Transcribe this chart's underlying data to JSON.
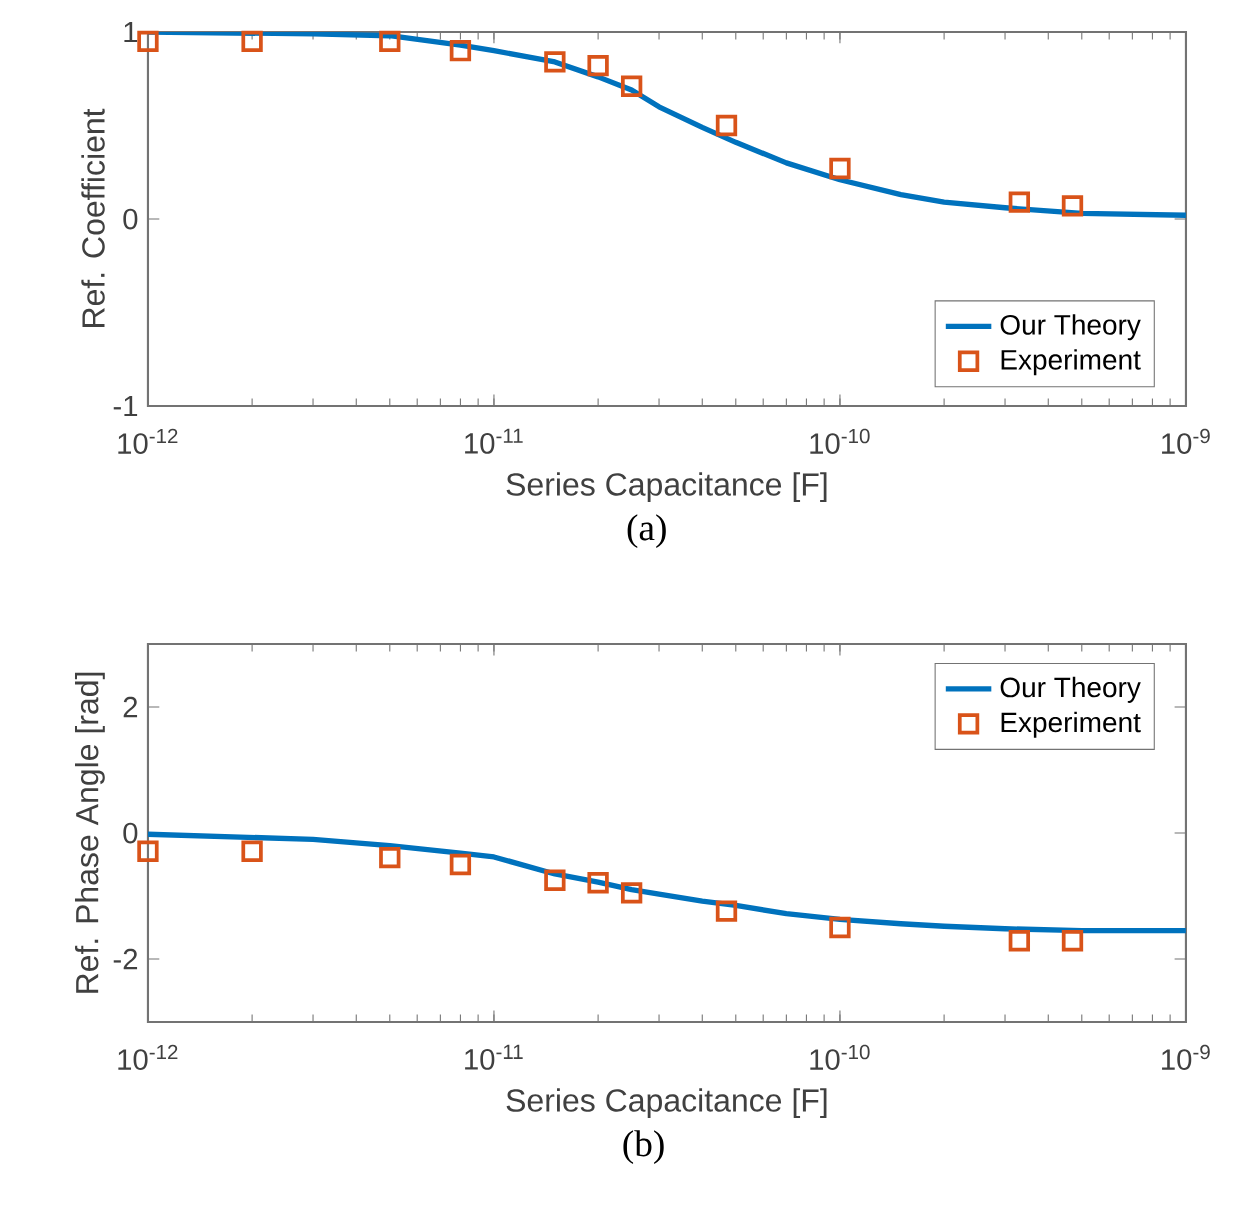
{
  "chart_data": [
    {
      "type": "line",
      "xlabel": "Series Capacitance [F]",
      "ylabel": "Ref. Coefficient",
      "annotations": [
        "(a)"
      ],
      "log": "x",
      "grid": false,
      "legend": "bottom right",
      "xlim": [
        1e-12,
        1e-09
      ],
      "xticks": [
        {
          "value": 1e-12,
          "label": "10$^{-12}$"
        },
        {
          "value": 1e-11,
          "label": "10$^{-11}$"
        },
        {
          "value": 1e-10,
          "label": "10$^{-10}$"
        },
        {
          "value": 1e-09,
          "label": "10$^{-9}$"
        }
      ],
      "ylim": [
        -1,
        1
      ],
      "yticks": [
        -1,
        0,
        1
      ],
      "series": [
        {
          "name": "Our Theory",
          "color": "#0072bd",
          "marker": "none",
          "line_style": "solid",
          "x": [
            1e-12,
            3e-12,
            5e-12,
            8e-12,
            1e-11,
            1.5e-11,
            2e-11,
            2.5e-11,
            3e-11,
            4e-11,
            5e-11,
            7e-11,
            1e-10,
            1.5e-10,
            2e-10,
            3e-10,
            5e-10,
            1e-09
          ],
          "values": [
            1.0,
            0.99,
            0.98,
            0.93,
            0.9,
            0.84,
            0.76,
            0.69,
            0.6,
            0.49,
            0.41,
            0.3,
            0.21,
            0.13,
            0.09,
            0.06,
            0.03,
            0.02
          ]
        },
        {
          "name": "Experiment",
          "type": "scatter",
          "color": "#d95319",
          "marker": "square",
          "x": [
            1e-12,
            2e-12,
            5e-12,
            8e-12,
            1.5e-11,
            2e-11,
            2.5e-11,
            4.7e-11,
            1e-10,
            3.3e-10,
            4.7e-10
          ],
          "values": [
            0.95,
            0.95,
            0.95,
            0.9,
            0.84,
            0.82,
            0.71,
            0.5,
            0.27,
            0.09,
            0.07
          ]
        }
      ]
    },
    {
      "type": "line",
      "xlabel": "Series Capacitance [F]",
      "ylabel": "Ref. Phase Angle [rad]",
      "annotations": [
        "(b)"
      ],
      "log": "x",
      "grid": false,
      "legend": "top right",
      "xlim": [
        1e-12,
        1e-09
      ],
      "xticks": [
        {
          "value": 1e-12,
          "label": "10$^{-12}$"
        },
        {
          "value": 1e-11,
          "label": "10$^{-11}$"
        },
        {
          "value": 1e-10,
          "label": "10$^{-10}$"
        },
        {
          "value": 1e-09,
          "label": "10$^{-9}$"
        }
      ],
      "ylim": [
        -3,
        3
      ],
      "yticks": [
        -2,
        0,
        2
      ],
      "series": [
        {
          "name": "Our Theory",
          "color": "#0072bd",
          "marker": "none",
          "line_style": "solid",
          "x": [
            1e-12,
            3e-12,
            5e-12,
            8e-12,
            1e-11,
            1.5e-11,
            2e-11,
            2.5e-11,
            3e-11,
            4e-11,
            5e-11,
            7e-11,
            1e-10,
            1.5e-10,
            2e-10,
            3e-10,
            5e-10,
            1e-09
          ],
          "values": [
            -0.02,
            -0.1,
            -0.2,
            -0.32,
            -0.38,
            -0.65,
            -0.78,
            -0.9,
            -0.97,
            -1.08,
            -1.15,
            -1.28,
            -1.37,
            -1.44,
            -1.48,
            -1.52,
            -1.55,
            -1.55
          ]
        },
        {
          "name": "Experiment",
          "type": "scatter",
          "color": "#d95319",
          "marker": "square",
          "x": [
            1e-12,
            2e-12,
            5e-12,
            8e-12,
            1.5e-11,
            2e-11,
            2.5e-11,
            4.7e-11,
            1e-10,
            3.3e-10,
            4.7e-10
          ],
          "values": [
            -0.29,
            -0.29,
            -0.39,
            -0.5,
            -0.75,
            -0.79,
            -0.95,
            -1.24,
            -1.5,
            -1.71,
            -1.71
          ]
        }
      ]
    }
  ]
}
